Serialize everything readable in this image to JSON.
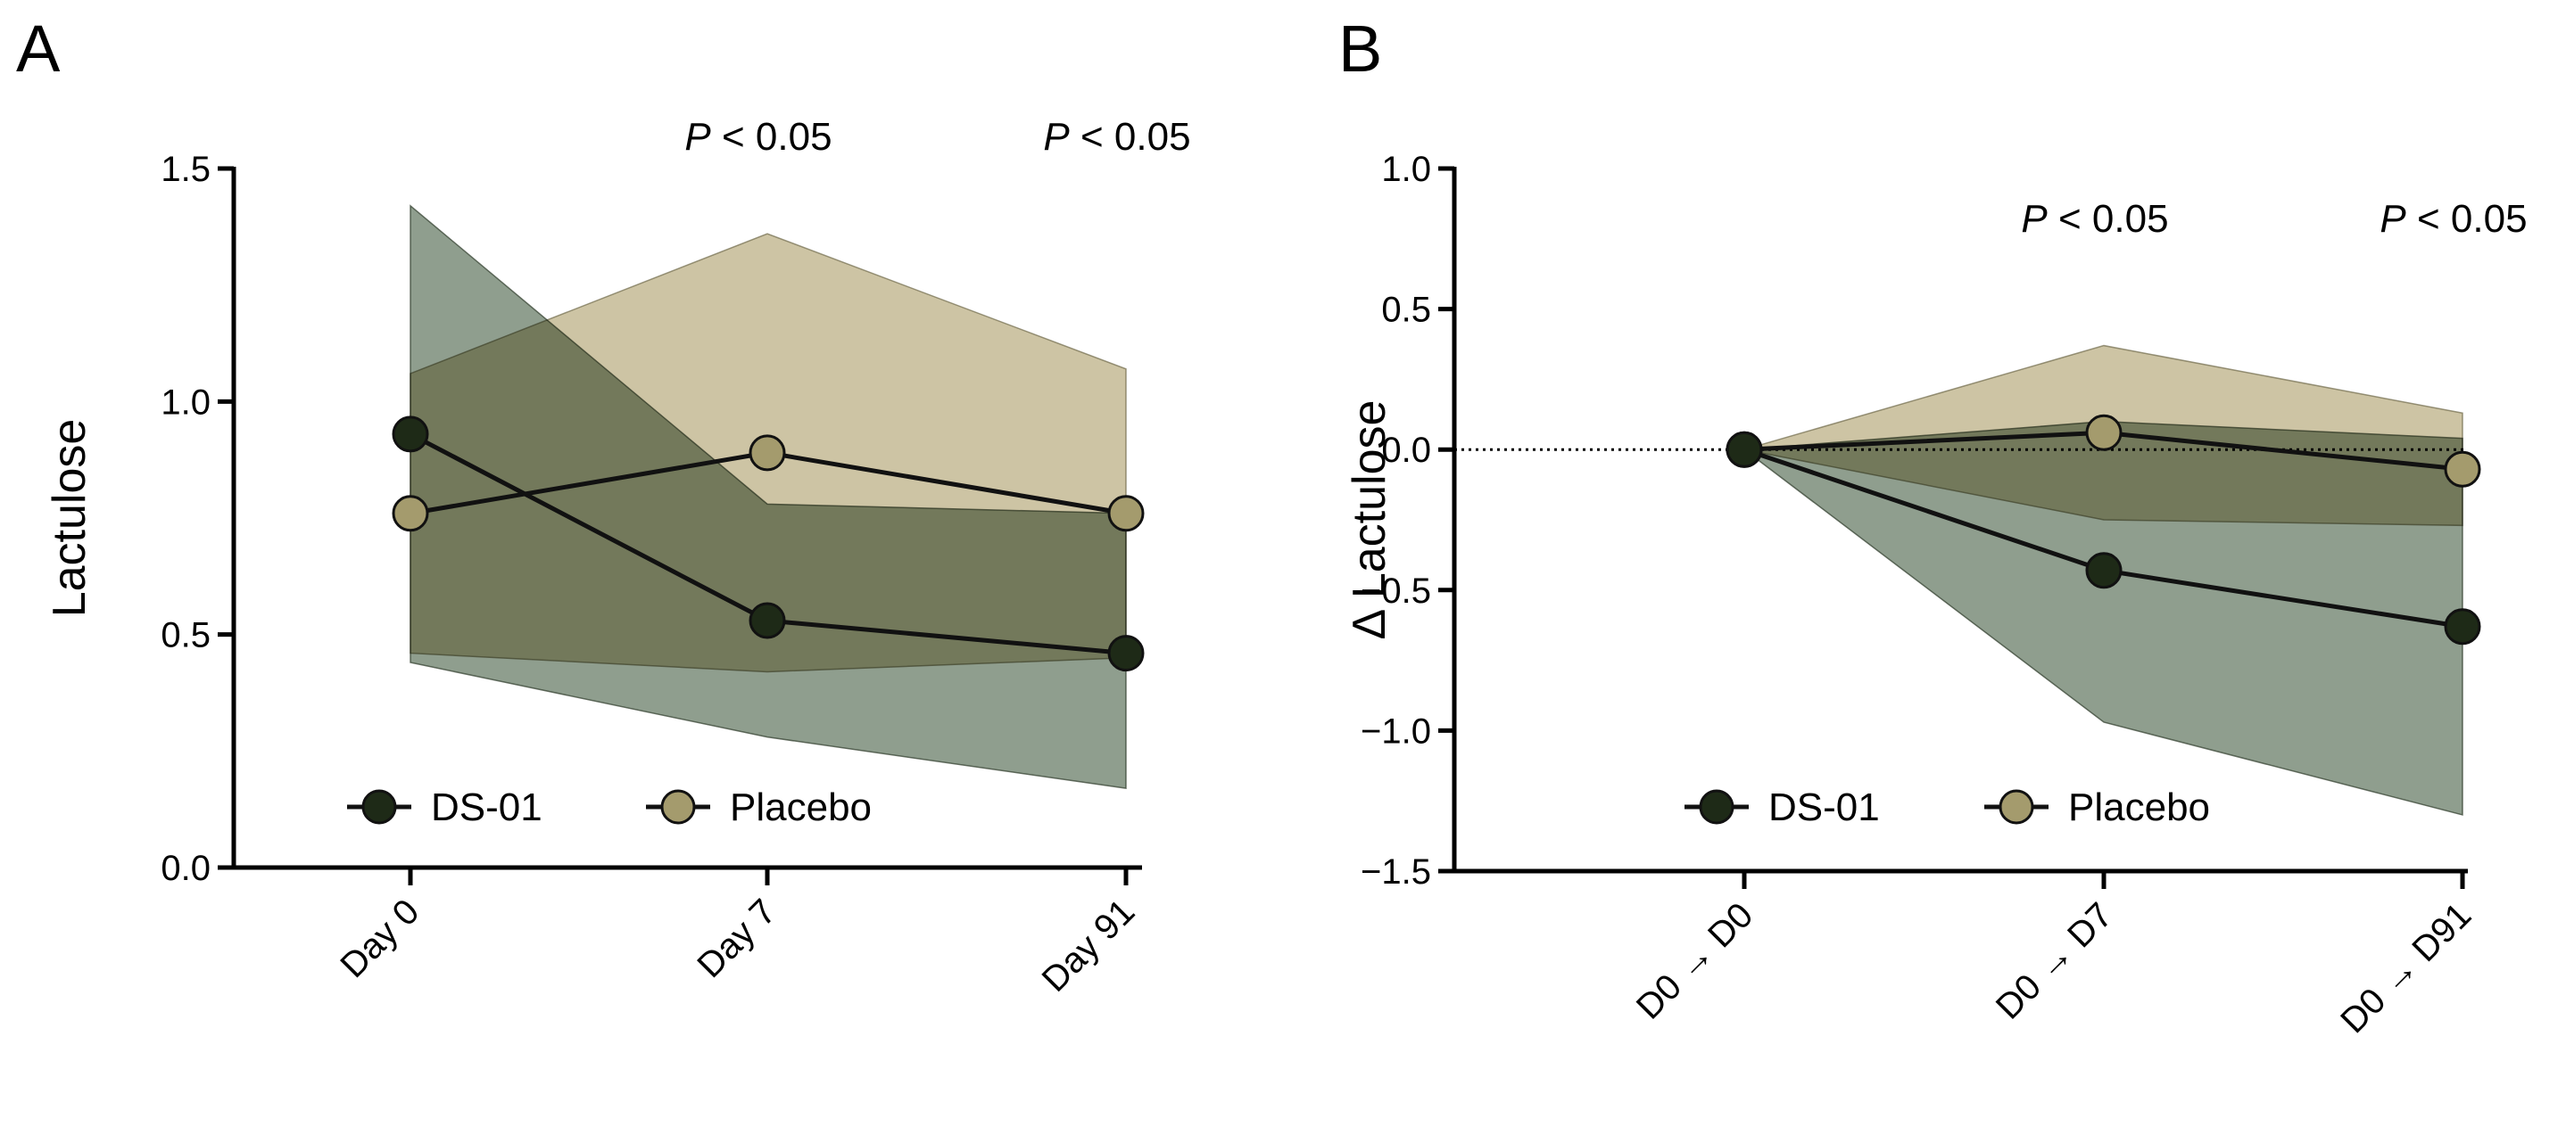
{
  "colors": {
    "ds01": "#1e2a17",
    "placebo": "#a49b6d",
    "ds01_band": "#4a6349",
    "placebo_band": "#a89a62"
  },
  "chart_data": [
    {
      "panel_label": "A",
      "type": "line",
      "ylabel": "Lactulose",
      "categories": [
        "Day 0",
        "Day 7",
        "Day 91"
      ],
      "ylim": [
        0.0,
        1.5
      ],
      "yticks": [
        "0.0",
        "0.5",
        "1.0",
        "1.5"
      ],
      "grid": false,
      "legend_position": "bottom",
      "annotations": [
        {
          "category": "Day 7",
          "italic": "P",
          "text": " < 0.05"
        },
        {
          "category": "Day 91",
          "italic": "P",
          "text": " < 0.05"
        }
      ],
      "series": [
        {
          "name": "DS-01",
          "values": [
            0.93,
            0.53,
            0.46
          ],
          "band_upper": [
            1.42,
            0.78,
            0.76
          ],
          "band_lower": [
            0.44,
            0.28,
            0.17
          ]
        },
        {
          "name": "Placebo",
          "values": [
            0.76,
            0.89,
            0.76
          ],
          "band_upper": [
            1.06,
            1.36,
            1.07
          ],
          "band_lower": [
            0.46,
            0.42,
            0.45
          ]
        }
      ]
    },
    {
      "panel_label": "B",
      "type": "line",
      "ylabel": "Δ Lactulose",
      "categories": [
        "D0 → D0",
        "D0 → D7",
        "D0 → D91"
      ],
      "ylim": [
        -1.5,
        1.0
      ],
      "yticks": [
        "−1.5",
        "−1.0",
        "−0.5",
        "0.0",
        "0.5",
        "1.0"
      ],
      "grid": false,
      "reference_line_y": 0,
      "legend_position": "bottom",
      "annotations": [
        {
          "category": "D0 → D7",
          "italic": "P",
          "text": " < 0.05"
        },
        {
          "category": "D0 → D91",
          "italic": "P",
          "text": " < 0.05"
        }
      ],
      "series": [
        {
          "name": "DS-01",
          "values": [
            0.0,
            -0.43,
            -0.63
          ],
          "band_upper": [
            0.0,
            0.1,
            0.04
          ],
          "band_lower": [
            0.0,
            -0.97,
            -1.3
          ]
        },
        {
          "name": "Placebo",
          "values": [
            0.0,
            0.06,
            -0.07
          ],
          "band_upper": [
            0.0,
            0.37,
            0.13
          ],
          "band_lower": [
            0.0,
            -0.25,
            -0.27
          ]
        }
      ]
    }
  ]
}
